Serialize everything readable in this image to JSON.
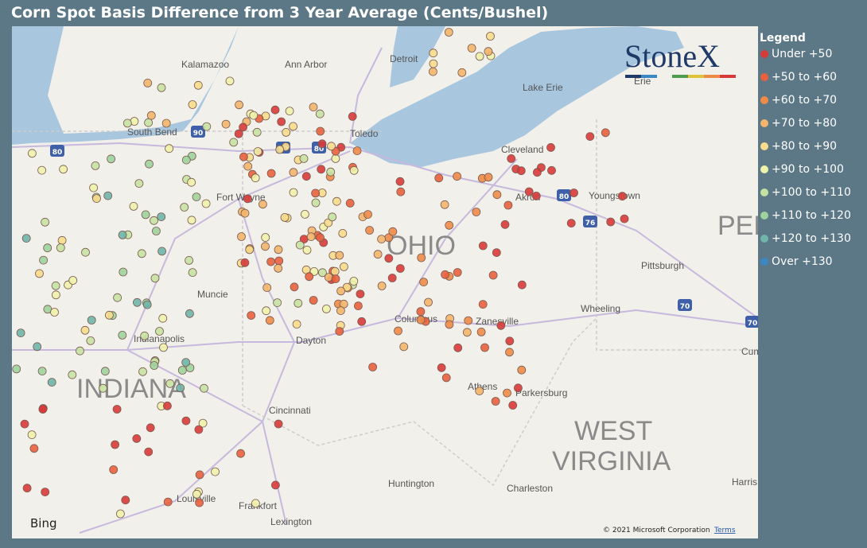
{
  "title": "Corn Spot Basis Difference from 3 Year Average (Cents/Bushel)",
  "legend": {
    "title": "Legend",
    "items": [
      {
        "label": "Under +50",
        "color": "#d83a3a"
      },
      {
        "label": "+50 to +60",
        "color": "#e8613d"
      },
      {
        "label": "+60 to +70",
        "color": "#ef8b48"
      },
      {
        "label": "+70 to +80",
        "color": "#f3b56c"
      },
      {
        "label": "+80 to +90",
        "color": "#f6dc8c"
      },
      {
        "label": "+90 to +100",
        "color": "#eef2aa"
      },
      {
        "label": "+100 to +110",
        "color": "#c6e2a2"
      },
      {
        "label": "+110 to +120",
        "color": "#9fd39d"
      },
      {
        "label": "+120 to +130",
        "color": "#6fb5aa"
      },
      {
        "label": "Over +130",
        "color": "#3b87c4"
      }
    ]
  },
  "map": {
    "logo": "StoneX",
    "provider": "Bing",
    "attribution": "© 2021 Microsoft Corporation",
    "terms": "Terms",
    "places": [
      "Kalamazoo",
      "Ann Arbor",
      "Detroit",
      "South Bend",
      "Toledo",
      "Lake Erie",
      "Erie",
      "Cleveland",
      "Fort Wayne",
      "Akron",
      "Youngstown",
      "Pittsburgh",
      "Muncie",
      "Indianapolis",
      "Dayton",
      "Columbus",
      "Zanesville",
      "Wheeling",
      "Athens",
      "Parkersburg",
      "Cincinnati",
      "Huntington",
      "Charleston",
      "Louisville",
      "Frankfort",
      "Lexington",
      "Harris",
      "Cum"
    ],
    "regions": [
      "OHIO",
      "PEN",
      "INDIANA",
      "WEST",
      "VIRGINIA"
    ],
    "shields": [
      "80",
      "90",
      "90",
      "80",
      "80",
      "76",
      "70",
      "70"
    ]
  }
}
